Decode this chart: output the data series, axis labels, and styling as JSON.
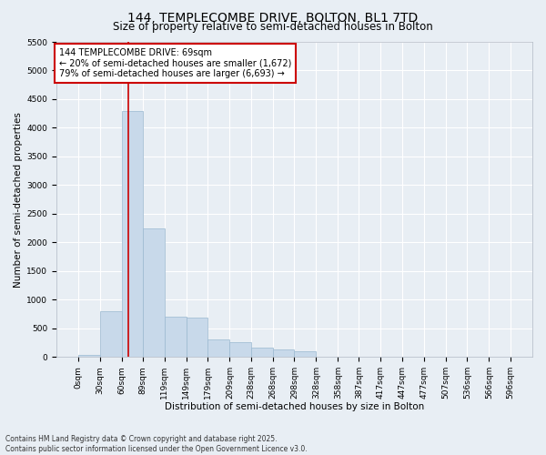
{
  "title": "144, TEMPLECOMBE DRIVE, BOLTON, BL1 7TD",
  "subtitle": "Size of property relative to semi-detached houses in Bolton",
  "xlabel": "Distribution of semi-detached houses by size in Bolton",
  "ylabel": "Number of semi-detached properties",
  "bar_color": "#c8d9ea",
  "bar_edge_color": "#9ab8d0",
  "vline_color": "#cc0000",
  "vline_x": 69,
  "annotation_text": "144 TEMPLECOMBE DRIVE: 69sqm\n← 20% of semi-detached houses are smaller (1,672)\n79% of semi-detached houses are larger (6,693) →",
  "annotation_box_color": "#ffffff",
  "annotation_box_edge": "#cc0000",
  "bin_edges": [
    0,
    30,
    60,
    89,
    119,
    149,
    179,
    209,
    238,
    268,
    298,
    328,
    358,
    387,
    417,
    447,
    477,
    507,
    536,
    566,
    596
  ],
  "bin_labels": [
    "0sqm",
    "30sqm",
    "60sqm",
    "89sqm",
    "119sqm",
    "149sqm",
    "179sqm",
    "209sqm",
    "238sqm",
    "268sqm",
    "298sqm",
    "328sqm",
    "358sqm",
    "387sqm",
    "417sqm",
    "447sqm",
    "477sqm",
    "507sqm",
    "536sqm",
    "566sqm",
    "596sqm"
  ],
  "bar_heights": [
    30,
    800,
    4300,
    2250,
    700,
    680,
    300,
    260,
    155,
    125,
    95,
    0,
    0,
    0,
    0,
    0,
    0,
    0,
    0,
    0
  ],
  "ylim": [
    0,
    5500
  ],
  "yticks": [
    0,
    500,
    1000,
    1500,
    2000,
    2500,
    3000,
    3500,
    4000,
    4500,
    5000,
    5500
  ],
  "background_color": "#e8eef4",
  "plot_bg_color": "#e8eef4",
  "grid_color": "#ffffff",
  "footnote": "Contains HM Land Registry data © Crown copyright and database right 2025.\nContains public sector information licensed under the Open Government Licence v3.0.",
  "title_fontsize": 10,
  "subtitle_fontsize": 8.5,
  "tick_fontsize": 6.5,
  "label_fontsize": 7.5,
  "annot_fontsize": 7
}
